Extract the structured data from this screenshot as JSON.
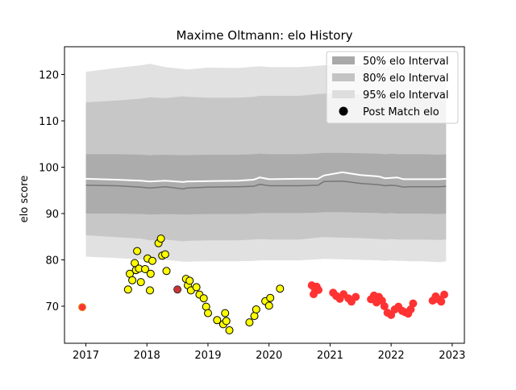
{
  "chart_data": {
    "type": "scatter",
    "title": "Maxime Oltmann: elo History",
    "xlabel": "",
    "ylabel": "elo score",
    "xlim": [
      2016.65,
      2023.2
    ],
    "ylim": [
      62.0,
      126.0
    ],
    "x_ticks": [
      2017,
      2018,
      2019,
      2020,
      2021,
      2022,
      2023
    ],
    "x_tick_labels": [
      "2017",
      "2018",
      "2019",
      "2020",
      "2021",
      "2022",
      "2023"
    ],
    "y_ticks": [
      70,
      80,
      90,
      100,
      110,
      120
    ],
    "y_tick_labels": [
      "70",
      "80",
      "90",
      "100",
      "110",
      "120"
    ],
    "grid": false,
    "legend_position": "top-right",
    "legend": [
      {
        "label": "50% elo Interval",
        "kind": "band",
        "color": "#a9a9a9"
      },
      {
        "label": "80% elo Interval",
        "kind": "band",
        "color": "#c4c4c4"
      },
      {
        "label": "95% elo Interval",
        "kind": "band",
        "color": "#dedede"
      },
      {
        "label": "Post Match elo",
        "kind": "marker",
        "color": "#000000"
      }
    ],
    "bands": {
      "x": [
        2017.0,
        2017.5,
        2017.9,
        2018.05,
        2018.3,
        2018.6,
        2018.65,
        2019.0,
        2019.5,
        2019.75,
        2019.85,
        2020.0,
        2020.5,
        2020.8,
        2020.9,
        2021.2,
        2021.5,
        2021.8,
        2021.9,
        2022.0,
        2022.1,
        2022.2,
        2022.3,
        2022.5,
        2022.8,
        2022.9
      ],
      "p50_low": [
        90.0,
        90.0,
        89.9,
        89.8,
        89.9,
        89.8,
        89.8,
        89.9,
        89.9,
        90.0,
        90.1,
        90.1,
        90.1,
        90.2,
        90.3,
        90.3,
        90.2,
        90.1,
        90.0,
        90.1,
        90.0,
        90.0,
        90.0,
        90.0,
        89.9,
        90.0
      ],
      "p50_high": [
        102.8,
        102.8,
        102.7,
        102.6,
        102.7,
        102.6,
        102.6,
        102.7,
        102.7,
        102.8,
        102.9,
        102.8,
        102.8,
        103.0,
        103.1,
        103.1,
        103.0,
        102.9,
        102.8,
        102.9,
        102.8,
        102.8,
        102.8,
        102.8,
        102.7,
        102.8
      ],
      "p80_low": [
        85.3,
        84.9,
        84.6,
        84.2,
        84.4,
        84.0,
        84.1,
        84.2,
        84.2,
        84.4,
        84.5,
        84.4,
        84.4,
        84.8,
        84.9,
        84.8,
        84.7,
        84.5,
        84.4,
        84.5,
        84.4,
        84.4,
        84.4,
        84.4,
        84.3,
        84.4
      ],
      "p80_high": [
        114.0,
        114.4,
        114.8,
        115.1,
        114.9,
        115.3,
        115.2,
        115.0,
        115.0,
        115.2,
        115.4,
        115.4,
        115.4,
        115.8,
        115.9,
        115.9,
        115.7,
        115.5,
        115.4,
        115.5,
        115.4,
        115.4,
        115.4,
        115.4,
        115.3,
        115.4
      ],
      "p95_low": [
        80.7,
        80.4,
        80.1,
        79.9,
        80.0,
        79.6,
        79.6,
        79.7,
        79.7,
        79.8,
        79.9,
        79.9,
        79.9,
        80.1,
        80.2,
        80.1,
        80.0,
        79.9,
        79.8,
        79.9,
        79.8,
        79.8,
        79.7,
        79.7,
        79.5,
        79.7
      ],
      "p95_high": [
        120.6,
        121.4,
        122.0,
        122.3,
        121.6,
        121.2,
        121.1,
        121.5,
        121.4,
        121.7,
        121.8,
        121.6,
        121.6,
        121.9,
        122.0,
        122.0,
        121.8,
        121.7,
        121.7,
        121.8,
        121.9,
        121.9,
        121.9,
        121.9,
        121.5,
        121.5
      ],
      "center": [
        96.1,
        96.0,
        95.7,
        95.5,
        95.8,
        95.3,
        95.5,
        95.7,
        95.8,
        95.9,
        96.3,
        96.0,
        96.0,
        96.1,
        96.9,
        97.0,
        96.5,
        96.2,
        96.0,
        96.1,
        96.0,
        95.7,
        95.8,
        95.8,
        95.8,
        95.9
      ],
      "mean": [
        97.5,
        97.3,
        97.1,
        96.9,
        97.1,
        96.8,
        96.9,
        97.0,
        97.1,
        97.3,
        97.8,
        97.4,
        97.5,
        97.5,
        98.2,
        98.9,
        98.3,
        98.0,
        97.6,
        97.7,
        97.8,
        97.4,
        97.4,
        97.4,
        97.4,
        97.5
      ]
    },
    "series": [
      {
        "marker_color": "#ffff00",
        "edge_color": "#000000",
        "points": [
          [
            2016.94,
            69.8
          ],
          [
            2017.69,
            73.6
          ],
          [
            2017.72,
            77.0
          ],
          [
            2017.76,
            75.6
          ],
          [
            2017.8,
            79.3
          ],
          [
            2017.82,
            77.8
          ],
          [
            2017.84,
            81.9
          ],
          [
            2017.87,
            78.1
          ],
          [
            2017.9,
            75.2
          ],
          [
            2017.97,
            78.0
          ],
          [
            2018.01,
            80.3
          ],
          [
            2018.05,
            73.4
          ],
          [
            2018.06,
            77.0
          ],
          [
            2018.09,
            79.8
          ],
          [
            2018.19,
            83.6
          ],
          [
            2018.23,
            84.6
          ],
          [
            2018.25,
            80.9
          ],
          [
            2018.3,
            81.2
          ],
          [
            2018.32,
            77.6
          ],
          [
            2018.5,
            73.6
          ],
          [
            2018.64,
            75.9
          ],
          [
            2018.67,
            74.5
          ],
          [
            2018.7,
            75.5
          ],
          [
            2018.72,
            73.4
          ],
          [
            2018.81,
            74.1
          ],
          [
            2018.86,
            72.5
          ],
          [
            2018.93,
            71.7
          ],
          [
            2018.97,
            69.9
          ],
          [
            2019.0,
            68.5
          ],
          [
            2019.15,
            67.0
          ],
          [
            2019.25,
            66.1
          ],
          [
            2019.28,
            68.5
          ],
          [
            2019.3,
            66.8
          ],
          [
            2019.35,
            64.8
          ],
          [
            2019.68,
            66.5
          ],
          [
            2019.76,
            67.9
          ],
          [
            2019.79,
            69.3
          ],
          [
            2019.94,
            71.1
          ],
          [
            2020.0,
            70.1
          ],
          [
            2020.02,
            71.8
          ],
          [
            2020.18,
            73.8
          ]
        ]
      },
      {
        "marker_color": "#ff3333",
        "edge_color": "#ff3333",
        "points": [
          [
            2020.7,
            74.5
          ],
          [
            2020.73,
            72.6
          ],
          [
            2020.75,
            73.8
          ],
          [
            2020.78,
            74.2
          ],
          [
            2020.81,
            73.5
          ],
          [
            2021.05,
            72.9
          ],
          [
            2021.1,
            72.2
          ],
          [
            2021.16,
            71.6
          ],
          [
            2021.22,
            72.6
          ],
          [
            2021.3,
            71.7
          ],
          [
            2021.35,
            71.0
          ],
          [
            2021.42,
            72.0
          ],
          [
            2021.67,
            71.5
          ],
          [
            2021.72,
            72.3
          ],
          [
            2021.76,
            70.8
          ],
          [
            2021.8,
            72.0
          ],
          [
            2021.85,
            71.2
          ],
          [
            2021.89,
            70.0
          ],
          [
            2021.94,
            68.6
          ],
          [
            2022.0,
            68.1
          ],
          [
            2022.06,
            69.3
          ],
          [
            2022.12,
            69.9
          ],
          [
            2022.18,
            69.0
          ],
          [
            2022.23,
            68.7
          ],
          [
            2022.28,
            68.4
          ],
          [
            2022.32,
            69.3
          ],
          [
            2022.36,
            70.6
          ],
          [
            2022.68,
            71.2
          ],
          [
            2022.73,
            72.1
          ],
          [
            2022.77,
            71.5
          ],
          [
            2022.82,
            71.0
          ],
          [
            2022.87,
            72.5
          ]
        ]
      }
    ]
  }
}
